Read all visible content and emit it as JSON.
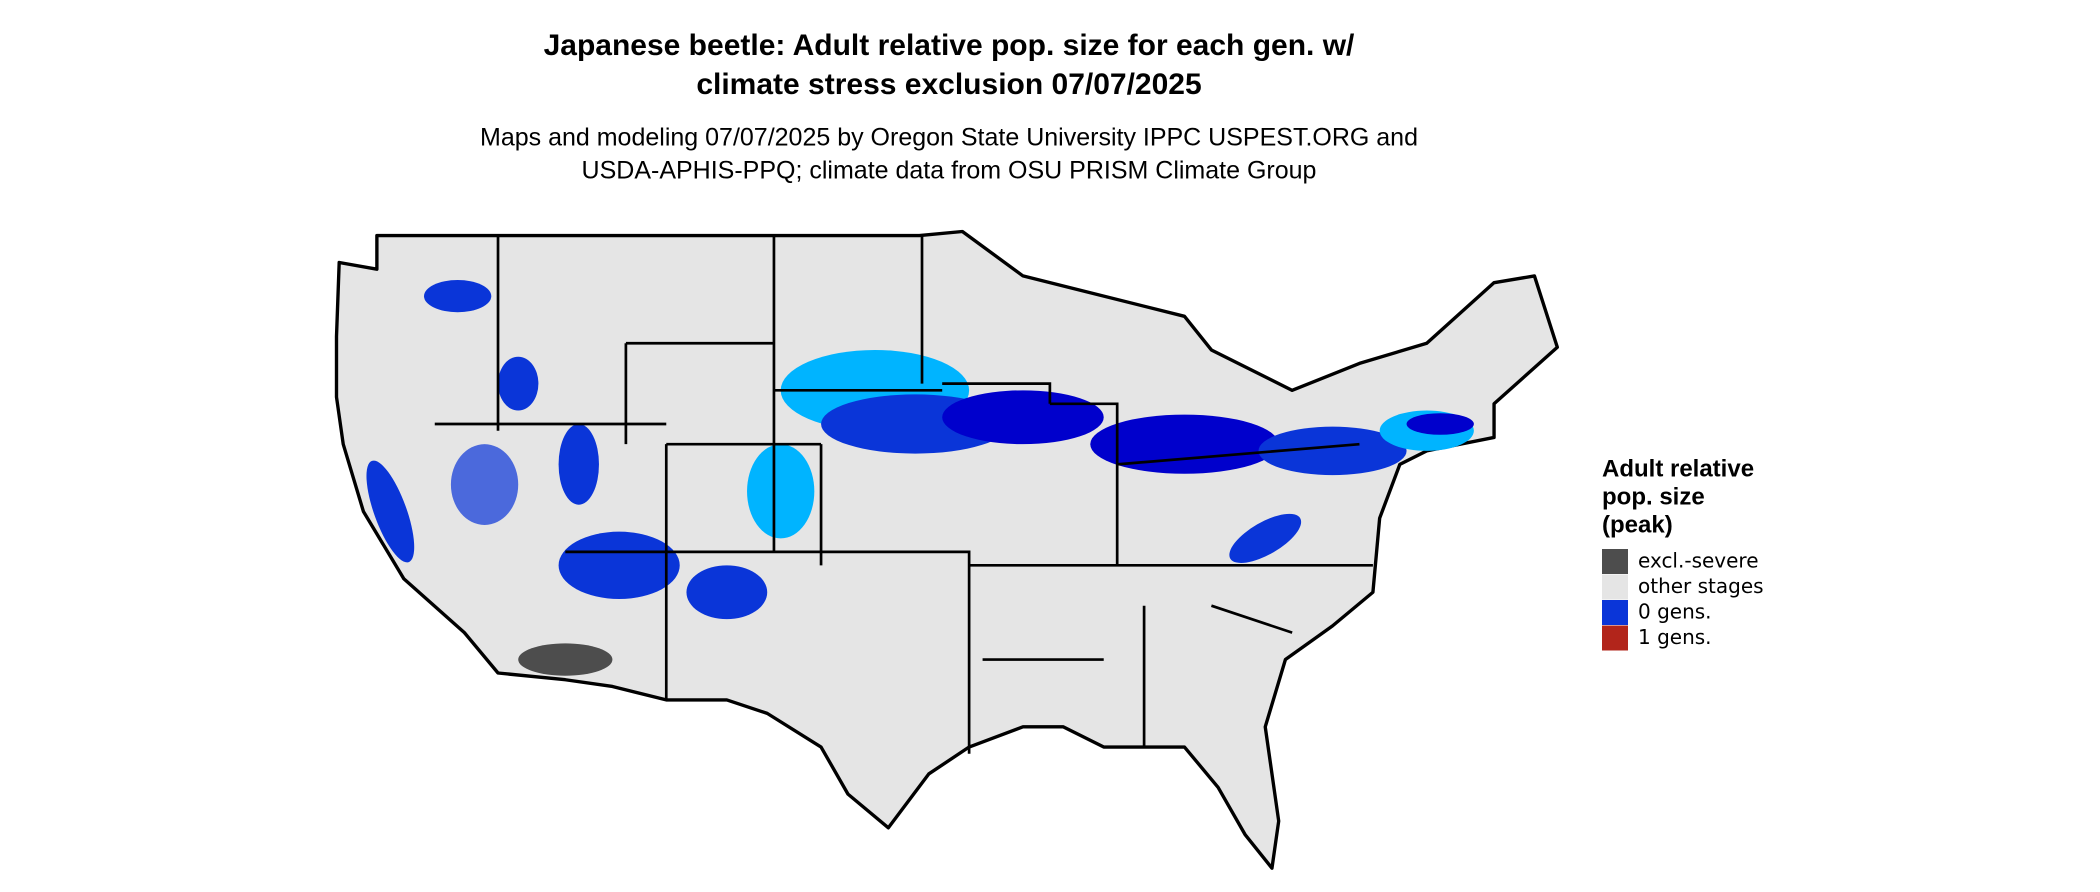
{
  "title_lines": [
    "Japanese beetle: Adult relative pop. size for each gen. w/",
    "climate stress exclusion 07/07/2025"
  ],
  "subtitle_lines": [
    "Maps and modeling 07/07/2025 by Oregon State University IPPC USPEST.ORG and",
    "USDA-APHIS-PPQ; climate data from OSU PRISM Climate Group"
  ],
  "legend": {
    "title_lines": [
      "Adult relative",
      "pop. size",
      "(peak)"
    ],
    "items": [
      {
        "label": "excl.-severe",
        "color": "#4d4d4d"
      },
      {
        "label": "other stages",
        "color": "#e5e5e5"
      },
      {
        "label": "0 gens.",
        "color": "#0a35d8"
      },
      {
        "label": "1 gens.",
        "color": "#b2251b"
      }
    ]
  }
}
